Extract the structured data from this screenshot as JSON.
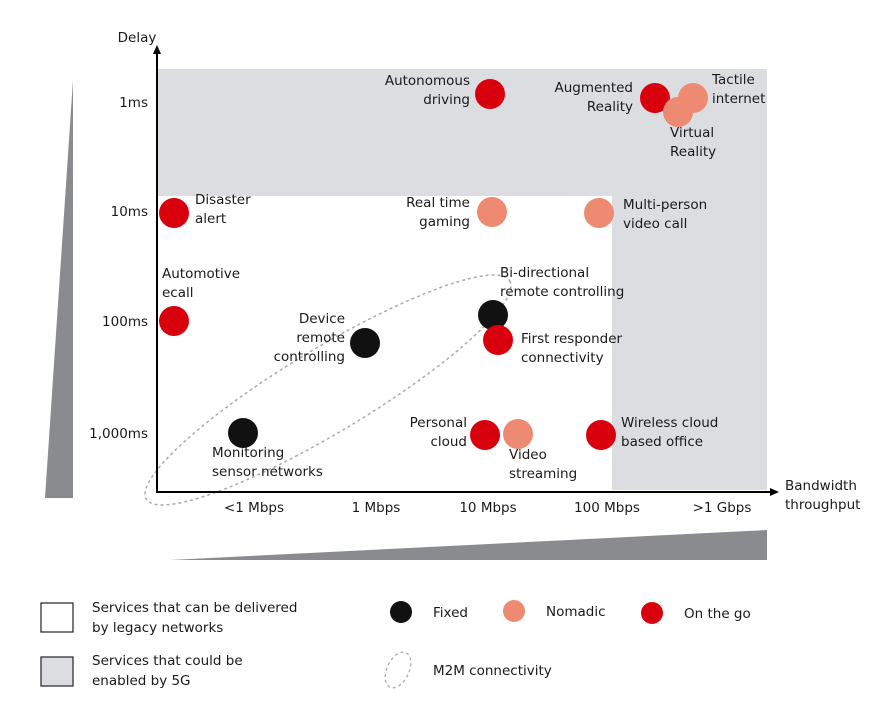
{
  "chart_data": {
    "type": "scatter",
    "xlabel": [
      "Bandwidth",
      "throughput"
    ],
    "ylabel": "Delay",
    "x_categories": [
      "<1 Mbps",
      "1 Mbps",
      "10 Mbps",
      "100 Mbps",
      ">1 Gbps"
    ],
    "y_categories": [
      "1ms",
      "10ms",
      "100ms",
      "1,000ms"
    ],
    "colors": {
      "fixed": "#111111",
      "nomadic": "#ee8a72",
      "on_the_go": "#d9000d",
      "5g_region": "#dcdde0"
    },
    "points": [
      {
        "label": [
          "Autonomous",
          "driving"
        ],
        "x": "10 Mbps",
        "y": "1ms",
        "type": "on_the_go"
      },
      {
        "label": [
          "Augmented",
          "Reality"
        ],
        "x": ">1 Gbps",
        "y": "1ms",
        "type": "on_the_go"
      },
      {
        "label": [
          "Virtual",
          "Reality"
        ],
        "x": ">1 Gbps",
        "y": "1ms",
        "type": "nomadic"
      },
      {
        "label": [
          "Tactile",
          "internet"
        ],
        "x": ">1 Gbps",
        "y": "1ms",
        "type": "nomadic"
      },
      {
        "label": [
          "Disaster",
          "alert"
        ],
        "x": "<1 Mbps",
        "y": "10ms",
        "type": "on_the_go"
      },
      {
        "label": [
          "Real time",
          "gaming"
        ],
        "x": "10 Mbps",
        "y": "10ms",
        "type": "nomadic"
      },
      {
        "label": [
          "Multi-person",
          "video call"
        ],
        "x": "100 Mbps",
        "y": "10ms",
        "type": "nomadic"
      },
      {
        "label": [
          "Automotive",
          "ecall"
        ],
        "x": "<1 Mbps",
        "y": "100ms",
        "type": "on_the_go"
      },
      {
        "label": [
          "Device",
          "remote",
          "controlling"
        ],
        "x": "1 Mbps",
        "y": "100ms",
        "type": "fixed"
      },
      {
        "label": [
          "Bi-directional",
          "remote controlling"
        ],
        "x": "10 Mbps",
        "y": "100ms",
        "type": "fixed"
      },
      {
        "label": [
          "First responder",
          "connectivity"
        ],
        "x": "10 Mbps",
        "y": "100ms",
        "type": "on_the_go"
      },
      {
        "label": [
          "Monitoring",
          "sensor networks"
        ],
        "x": "<1 Mbps",
        "y": "1,000ms",
        "type": "fixed"
      },
      {
        "label": [
          "Personal",
          "cloud"
        ],
        "x": "10 Mbps",
        "y": "1,000ms",
        "type": "on_the_go"
      },
      {
        "label": [
          "Video",
          "streaming"
        ],
        "x": "10 Mbps",
        "y": "1,000ms",
        "type": "nomadic"
      },
      {
        "label": [
          "Wireless cloud",
          "based office"
        ],
        "x": "100 Mbps",
        "y": "1,000ms",
        "type": "on_the_go"
      }
    ]
  },
  "legend": {
    "legacy": [
      "Services that can be delivered",
      "by legacy networks"
    ],
    "fiveg": [
      "Services that could be",
      "enabled by 5G"
    ],
    "fixed": "Fixed",
    "nomadic": "Nomadic",
    "on_the_go": "On the go",
    "m2m": "M2M connectivity"
  }
}
